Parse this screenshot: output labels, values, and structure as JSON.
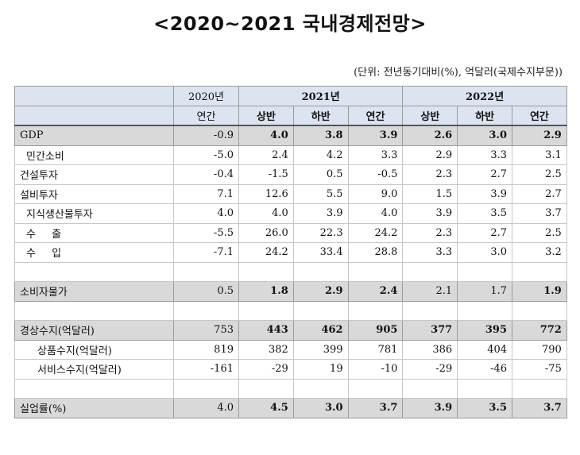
{
  "title": "<2020~2021 국내경제전망>",
  "unit_note": "(단위: 전년동기대비(%), 억달러(국제수지부문))",
  "header": {
    "y2020": "2020년",
    "y2021": "2021년",
    "y2022": "2022년",
    "annual": "연간",
    "h1": "상반",
    "h2": "하반"
  },
  "rows": {
    "gdp": {
      "label": "GDP",
      "v": [
        "-0.9",
        "4.0",
        "3.8",
        "3.9",
        "2.6",
        "3.0",
        "2.9"
      ]
    },
    "private": {
      "label": "민간소비",
      "v": [
        "-5.0",
        "2.4",
        "4.2",
        "3.3",
        "2.9",
        "3.3",
        "3.1"
      ]
    },
    "construction": {
      "label": "건설투자",
      "v": [
        "-0.4",
        "-1.5",
        "0.5",
        "-0.5",
        "2.3",
        "2.7",
        "2.5"
      ]
    },
    "facility": {
      "label": "설비투자",
      "v": [
        "7.1",
        "12.6",
        "5.5",
        "9.0",
        "1.5",
        "3.9",
        "2.7"
      ]
    },
    "ip": {
      "label": "지식생산물투자",
      "v": [
        "4.0",
        "4.0",
        "3.9",
        "4.0",
        "3.9",
        "3.5",
        "3.7"
      ]
    },
    "export": {
      "label_a": "수",
      "label_b": "출",
      "v": [
        "-5.5",
        "26.0",
        "22.3",
        "24.2",
        "2.3",
        "2.7",
        "2.5"
      ]
    },
    "import": {
      "label_a": "수",
      "label_b": "입",
      "v": [
        "-7.1",
        "24.2",
        "33.4",
        "28.8",
        "3.3",
        "3.0",
        "3.2"
      ]
    },
    "cpi": {
      "label": "소비자물가",
      "v": [
        "0.5",
        "1.8",
        "2.9",
        "2.4",
        "2.1",
        "1.7",
        "1.9"
      ]
    },
    "current": {
      "label": "경상수지(억달러)",
      "v": [
        "753",
        "443",
        "462",
        "905",
        "377",
        "395",
        "772"
      ]
    },
    "goods": {
      "label": "상품수지(억달러)",
      "v": [
        "819",
        "382",
        "399",
        "781",
        "386",
        "404",
        "790"
      ]
    },
    "services": {
      "label": "서비스수지(억달러)",
      "v": [
        "-161",
        "-29",
        "19",
        "-10",
        "-29",
        "-46",
        "-75"
      ]
    },
    "unemp": {
      "label": "실업률(%)",
      "v": [
        "4.0",
        "4.5",
        "3.0",
        "3.7",
        "3.9",
        "3.5",
        "3.7"
      ]
    }
  }
}
